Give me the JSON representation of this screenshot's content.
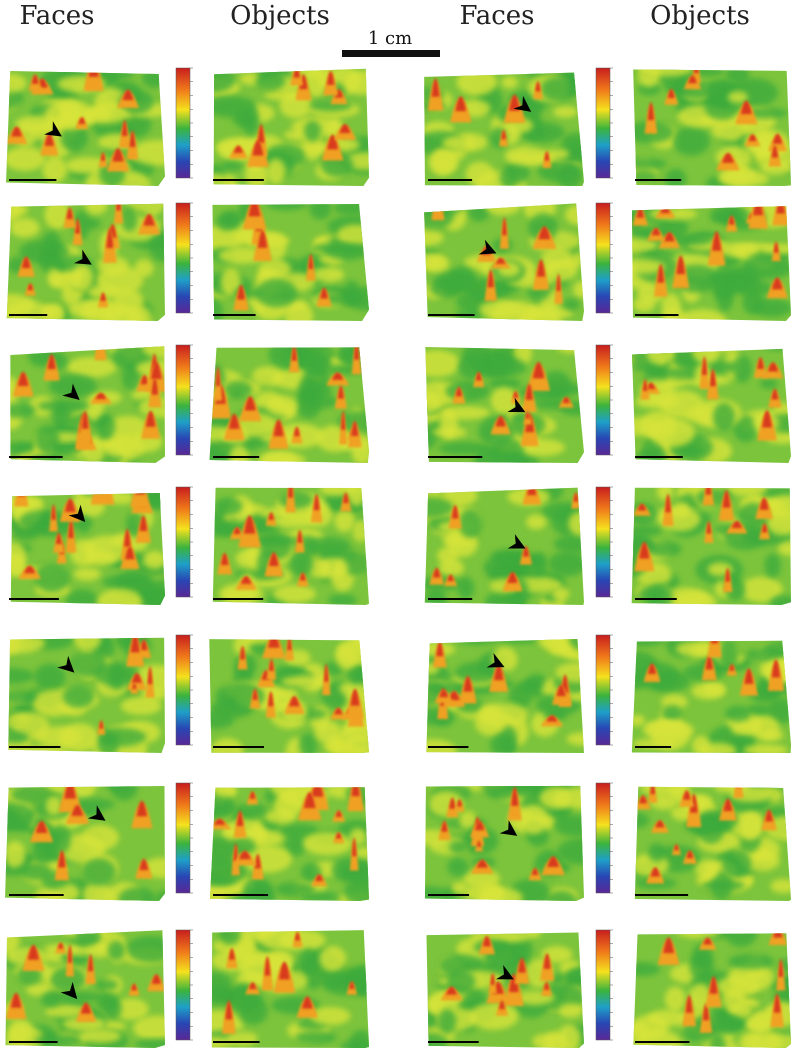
{
  "header": {
    "columns": [
      "Faces",
      "Objects",
      "Faces",
      "Objects"
    ],
    "scale_label": "1 cm"
  }
}
